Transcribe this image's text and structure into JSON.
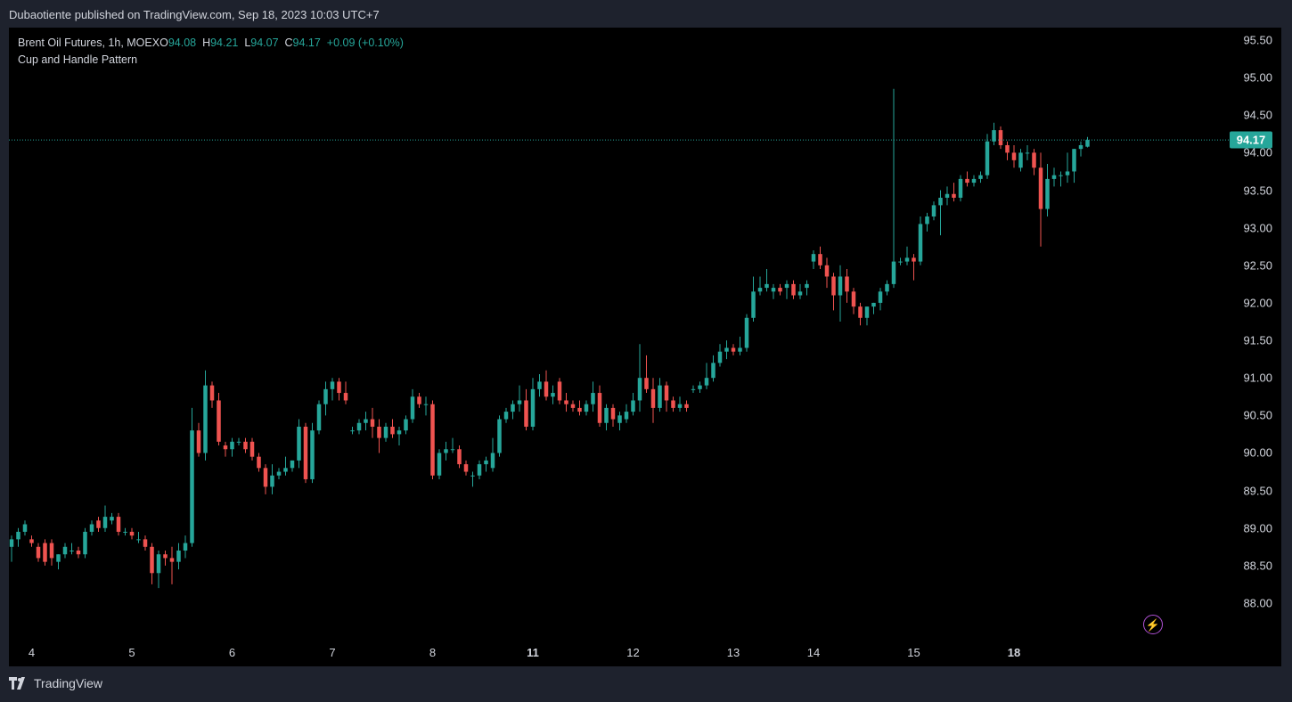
{
  "header": {
    "published": "Dubaotiente published on TradingView.com, Sep 18, 2023 10:03 UTC+7"
  },
  "legend": {
    "symbol": "Brent Oil Futures, 1h, MOEX",
    "o_key": "O",
    "o_val": "94.08",
    "h_key": "H",
    "h_val": "94.21",
    "l_key": "L",
    "l_val": "94.07",
    "c_key": "C",
    "c_val": "94.17",
    "change": "+0.09 (+0.10%)",
    "study": "Cup and Handle Pattern"
  },
  "last_price": "94.17",
  "footer": {
    "brand": "TradingView"
  },
  "colors": {
    "up": "#26a69a",
    "down": "#ef5350",
    "background": "#000000",
    "frame": "#1e222d",
    "alert": "#b051d5"
  },
  "icons": {
    "alert": "lightning-bolt-icon",
    "logo": "tradingview-logo-icon"
  },
  "chart_data": {
    "type": "candlestick",
    "title": "Brent Oil Futures, 1h, MOEX",
    "y_ticks": [
      "95.50",
      "95.00",
      "94.50",
      "94.00",
      "93.50",
      "93.00",
      "92.50",
      "92.00",
      "91.50",
      "91.00",
      "90.50",
      "90.00",
      "89.50",
      "89.00",
      "88.50",
      "88.00"
    ],
    "x_ticks": [
      {
        "label": "4",
        "candle": 3
      },
      {
        "label": "5",
        "candle": 18
      },
      {
        "label": "6",
        "candle": 33
      },
      {
        "label": "7",
        "candle": 48
      },
      {
        "label": "8",
        "candle": 63
      },
      {
        "label": "11",
        "candle": 78
      },
      {
        "label": "12",
        "candle": 93
      },
      {
        "label": "13",
        "candle": 108
      },
      {
        "label": "14",
        "candle": 120
      },
      {
        "label": "15",
        "candle": 135
      },
      {
        "label": "18",
        "candle": 150
      }
    ],
    "ylim": [
      87.6,
      95.85
    ],
    "last": 94.17,
    "ohlc": [
      [
        88.75,
        88.9,
        88.55,
        88.85
      ],
      [
        88.85,
        89.0,
        88.75,
        88.95
      ],
      [
        88.95,
        89.1,
        88.9,
        89.05
      ],
      [
        88.85,
        88.9,
        88.75,
        88.8
      ],
      [
        88.75,
        88.8,
        88.55,
        88.6
      ],
      [
        88.8,
        88.85,
        88.5,
        88.55
      ],
      [
        88.8,
        88.85,
        88.5,
        88.6
      ],
      [
        88.55,
        88.65,
        88.45,
        88.65
      ],
      [
        88.65,
        88.8,
        88.6,
        88.75
      ],
      [
        88.7,
        88.8,
        88.65,
        88.7
      ],
      [
        88.7,
        88.75,
        88.6,
        88.65
      ],
      [
        88.65,
        89.0,
        88.6,
        88.95
      ],
      [
        88.95,
        89.1,
        88.9,
        89.05
      ],
      [
        89.1,
        89.15,
        88.95,
        89.0
      ],
      [
        89.0,
        89.3,
        88.95,
        89.15
      ],
      [
        89.1,
        89.2,
        89.05,
        89.15
      ],
      [
        89.15,
        89.2,
        88.9,
        88.95
      ],
      [
        88.95,
        89.0,
        88.9,
        88.95
      ],
      [
        88.95,
        89.0,
        88.85,
        88.9
      ],
      [
        88.85,
        88.95,
        88.8,
        88.85
      ],
      [
        88.85,
        88.9,
        88.7,
        88.75
      ],
      [
        88.75,
        88.8,
        88.25,
        88.4
      ],
      [
        88.4,
        88.7,
        88.2,
        88.65
      ],
      [
        88.65,
        88.7,
        88.5,
        88.6
      ],
      [
        88.6,
        88.75,
        88.25,
        88.55
      ],
      [
        88.55,
        88.8,
        88.45,
        88.7
      ],
      [
        88.7,
        88.9,
        88.6,
        88.8
      ],
      [
        88.8,
        90.6,
        88.75,
        90.3
      ],
      [
        90.3,
        90.4,
        89.95,
        90.0
      ],
      [
        90.0,
        91.1,
        89.9,
        90.9
      ],
      [
        90.9,
        90.95,
        90.6,
        90.7
      ],
      [
        90.7,
        90.8,
        90.1,
        90.15
      ],
      [
        90.1,
        90.15,
        89.95,
        90.05
      ],
      [
        90.05,
        90.2,
        89.95,
        90.15
      ],
      [
        90.15,
        90.2,
        90.1,
        90.15
      ],
      [
        90.15,
        90.2,
        90.0,
        90.05
      ],
      [
        90.15,
        90.2,
        89.9,
        89.95
      ],
      [
        89.95,
        90.0,
        89.75,
        89.8
      ],
      [
        89.8,
        89.85,
        89.45,
        89.55
      ],
      [
        89.55,
        89.85,
        89.45,
        89.7
      ],
      [
        89.7,
        89.8,
        89.65,
        89.75
      ],
      [
        89.75,
        89.95,
        89.7,
        89.8
      ],
      [
        89.8,
        89.9,
        89.75,
        89.9
      ],
      [
        89.9,
        90.45,
        89.8,
        90.35
      ],
      [
        90.35,
        90.4,
        89.6,
        89.65
      ],
      [
        89.65,
        90.4,
        89.6,
        90.3
      ],
      [
        90.3,
        90.7,
        90.25,
        90.65
      ],
      [
        90.65,
        90.95,
        90.5,
        90.85
      ],
      [
        90.85,
        91.0,
        90.7,
        90.95
      ],
      [
        90.95,
        91.0,
        90.7,
        90.8
      ],
      [
        90.8,
        90.95,
        90.65,
        90.7
      ],
      [
        90.3,
        90.35,
        90.25,
        90.3
      ],
      [
        90.3,
        90.45,
        90.25,
        90.4
      ],
      [
        90.4,
        90.55,
        90.3,
        90.45
      ],
      [
        90.45,
        90.6,
        90.2,
        90.35
      ],
      [
        90.35,
        90.45,
        90.0,
        90.2
      ],
      [
        90.2,
        90.4,
        90.15,
        90.35
      ],
      [
        90.35,
        90.45,
        90.2,
        90.25
      ],
      [
        90.25,
        90.35,
        90.1,
        90.3
      ],
      [
        90.3,
        90.5,
        90.25,
        90.45
      ],
      [
        90.45,
        90.85,
        90.4,
        90.75
      ],
      [
        90.75,
        90.8,
        90.6,
        90.65
      ],
      [
        90.65,
        90.75,
        90.5,
        90.65
      ],
      [
        90.65,
        90.7,
        89.65,
        89.7
      ],
      [
        89.7,
        90.05,
        89.65,
        90.0
      ],
      [
        90.0,
        90.15,
        89.9,
        90.05
      ],
      [
        90.05,
        90.2,
        90.0,
        90.05
      ],
      [
        90.05,
        90.1,
        89.8,
        89.85
      ],
      [
        89.85,
        89.9,
        89.7,
        89.75
      ],
      [
        89.7,
        89.75,
        89.55,
        89.7
      ],
      [
        89.7,
        89.9,
        89.65,
        89.85
      ],
      [
        89.85,
        89.95,
        89.75,
        89.9
      ],
      [
        89.8,
        90.2,
        89.75,
        90.0
      ],
      [
        90.0,
        90.5,
        89.95,
        90.45
      ],
      [
        90.45,
        90.6,
        90.4,
        90.55
      ],
      [
        90.55,
        90.7,
        90.45,
        90.65
      ],
      [
        90.65,
        90.9,
        90.55,
        90.7
      ],
      [
        90.7,
        90.85,
        90.3,
        90.35
      ],
      [
        90.35,
        91.0,
        90.3,
        90.85
      ],
      [
        90.85,
        91.05,
        90.75,
        90.95
      ],
      [
        90.95,
        91.1,
        90.7,
        90.75
      ],
      [
        90.75,
        90.9,
        90.65,
        90.8
      ],
      [
        90.95,
        91.0,
        90.65,
        90.7
      ],
      [
        90.7,
        90.8,
        90.55,
        90.65
      ],
      [
        90.65,
        90.7,
        90.55,
        90.6
      ],
      [
        90.6,
        90.7,
        90.5,
        90.55
      ],
      [
        90.55,
        90.7,
        90.5,
        90.65
      ],
      [
        90.65,
        90.95,
        90.55,
        90.8
      ],
      [
        90.8,
        90.9,
        90.35,
        90.4
      ],
      [
        90.4,
        90.65,
        90.3,
        90.6
      ],
      [
        90.6,
        90.65,
        90.35,
        90.45
      ],
      [
        90.4,
        90.55,
        90.3,
        90.5
      ],
      [
        90.45,
        90.65,
        90.4,
        90.55
      ],
      [
        90.55,
        90.8,
        90.5,
        90.7
      ],
      [
        90.7,
        91.45,
        90.55,
        91.0
      ],
      [
        91.0,
        91.3,
        90.8,
        90.85
      ],
      [
        90.85,
        91.0,
        90.4,
        90.6
      ],
      [
        90.6,
        91.0,
        90.55,
        90.9
      ],
      [
        90.9,
        90.95,
        90.55,
        90.7
      ],
      [
        90.7,
        90.75,
        90.55,
        90.6
      ],
      [
        90.6,
        90.75,
        90.55,
        90.65
      ],
      [
        90.65,
        90.7,
        90.55,
        90.6
      ],
      [
        90.85,
        90.9,
        90.8,
        90.85
      ],
      [
        90.85,
        90.95,
        90.8,
        90.9
      ],
      [
        90.9,
        91.2,
        90.85,
        91.0
      ],
      [
        91.0,
        91.3,
        90.95,
        91.2
      ],
      [
        91.2,
        91.45,
        91.15,
        91.35
      ],
      [
        91.35,
        91.5,
        91.25,
        91.4
      ],
      [
        91.4,
        91.45,
        91.3,
        91.35
      ],
      [
        91.35,
        91.55,
        91.3,
        91.4
      ],
      [
        91.4,
        91.85,
        91.35,
        91.8
      ],
      [
        91.8,
        92.35,
        91.75,
        92.15
      ],
      [
        92.15,
        92.35,
        92.1,
        92.2
      ],
      [
        92.2,
        92.45,
        92.15,
        92.25
      ],
      [
        92.15,
        92.25,
        92.05,
        92.2
      ],
      [
        92.2,
        92.25,
        92.1,
        92.15
      ],
      [
        92.2,
        92.3,
        92.05,
        92.25
      ],
      [
        92.25,
        92.3,
        92.05,
        92.1
      ],
      [
        92.1,
        92.25,
        92.05,
        92.15
      ],
      [
        92.2,
        92.3,
        92.1,
        92.25
      ],
      [
        92.55,
        92.7,
        92.45,
        92.65
      ],
      [
        92.65,
        92.75,
        92.45,
        92.5
      ],
      [
        92.5,
        92.6,
        92.2,
        92.35
      ],
      [
        92.35,
        92.4,
        91.9,
        92.1
      ],
      [
        92.1,
        92.5,
        91.75,
        92.35
      ],
      [
        92.35,
        92.45,
        92.0,
        92.15
      ],
      [
        92.15,
        92.2,
        91.85,
        91.95
      ],
      [
        91.95,
        92.0,
        91.7,
        91.8
      ],
      [
        91.8,
        91.95,
        91.7,
        91.95
      ],
      [
        91.95,
        92.0,
        91.85,
        92.0
      ],
      [
        92.0,
        92.2,
        91.9,
        92.15
      ],
      [
        92.15,
        92.3,
        92.1,
        92.25
      ],
      [
        92.25,
        94.85,
        92.2,
        92.55
      ],
      [
        92.55,
        92.6,
        92.5,
        92.55
      ],
      [
        92.55,
        92.75,
        92.5,
        92.6
      ],
      [
        92.6,
        92.65,
        92.3,
        92.55
      ],
      [
        92.55,
        93.15,
        92.5,
        93.05
      ],
      [
        93.05,
        93.2,
        92.95,
        93.15
      ],
      [
        93.15,
        93.35,
        93.1,
        93.3
      ],
      [
        93.3,
        93.5,
        92.9,
        93.4
      ],
      [
        93.4,
        93.55,
        93.3,
        93.45
      ],
      [
        93.45,
        93.6,
        93.35,
        93.4
      ],
      [
        93.4,
        93.7,
        93.35,
        93.65
      ],
      [
        93.65,
        93.75,
        93.55,
        93.6
      ],
      [
        93.6,
        93.7,
        93.55,
        93.65
      ],
      [
        93.65,
        93.75,
        93.6,
        93.7
      ],
      [
        93.7,
        94.25,
        93.65,
        94.15
      ],
      [
        94.15,
        94.4,
        94.1,
        94.3
      ],
      [
        94.3,
        94.35,
        94.05,
        94.1
      ],
      [
        94.1,
        94.15,
        93.9,
        94.0
      ],
      [
        94.0,
        94.1,
        93.8,
        93.9
      ],
      [
        93.8,
        94.05,
        93.75,
        94.0
      ],
      [
        94.0,
        94.1,
        93.9,
        94.0
      ],
      [
        94.0,
        94.05,
        93.7,
        93.8
      ],
      [
        93.8,
        94.0,
        92.75,
        93.25
      ],
      [
        93.25,
        93.85,
        93.15,
        93.65
      ],
      [
        93.65,
        93.8,
        93.55,
        93.7
      ],
      [
        93.7,
        93.75,
        93.55,
        93.7
      ],
      [
        93.7,
        94.0,
        93.6,
        93.75
      ],
      [
        93.75,
        94.05,
        93.6,
        94.05
      ],
      [
        94.05,
        94.15,
        93.95,
        94.1
      ],
      [
        94.08,
        94.21,
        94.07,
        94.17
      ]
    ]
  }
}
